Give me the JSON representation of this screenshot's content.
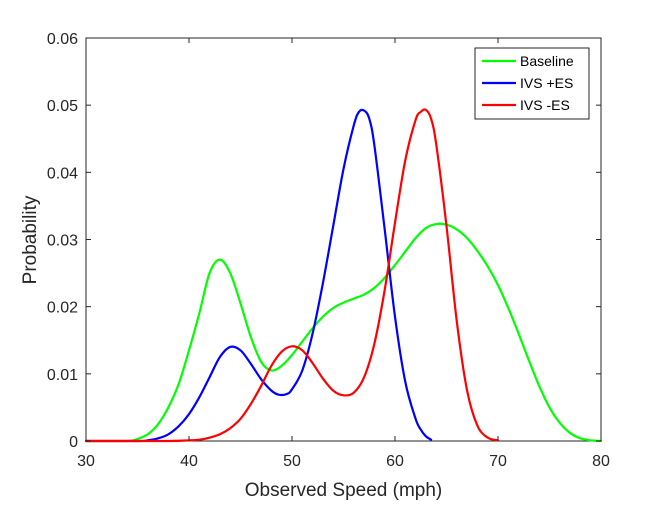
{
  "chart_data": {
    "type": "line",
    "title": "",
    "xlabel": "Observed Speed (mph)",
    "ylabel": "Probability",
    "xlim": [
      30,
      80
    ],
    "ylim": [
      0,
      0.06
    ],
    "xticks": [
      30,
      40,
      50,
      60,
      70,
      80
    ],
    "yticks": [
      0,
      0.01,
      0.02,
      0.03,
      0.04,
      0.05,
      0.06
    ],
    "xtick_labels": [
      "30",
      "40",
      "50",
      "60",
      "70",
      "80"
    ],
    "ytick_labels": [
      "0",
      "0.01",
      "0.02",
      "0.03",
      "0.04",
      "0.05",
      "0.06"
    ],
    "legend_position": "top-right",
    "grid": false,
    "series": [
      {
        "name": "Baseline",
        "color": "#00ff00",
        "x": [
          30,
          34,
          35,
          36,
          37,
          38,
          39,
          40,
          41,
          42,
          43,
          44,
          45,
          46,
          47,
          48,
          49,
          50,
          51,
          52,
          53,
          54,
          55,
          56,
          57,
          58,
          59,
          60,
          61,
          62,
          63,
          64,
          65,
          66,
          67,
          68,
          69,
          70,
          71,
          72,
          73,
          74,
          75,
          76,
          77,
          78,
          79,
          80
        ],
        "y": [
          0,
          0,
          0.0003,
          0.001,
          0.0025,
          0.005,
          0.0085,
          0.0135,
          0.019,
          0.025,
          0.027,
          0.025,
          0.0205,
          0.0155,
          0.0118,
          0.0105,
          0.0112,
          0.0128,
          0.0148,
          0.0168,
          0.0185,
          0.0198,
          0.0206,
          0.0212,
          0.0218,
          0.0228,
          0.0243,
          0.0262,
          0.0282,
          0.0302,
          0.0317,
          0.0323,
          0.0322,
          0.0315,
          0.0302,
          0.0283,
          0.026,
          0.0232,
          0.0198,
          0.016,
          0.012,
          0.0082,
          0.005,
          0.0027,
          0.0012,
          0.0004,
          0.0001,
          0
        ]
      },
      {
        "name": "IVS +ES",
        "color": "#0000ff",
        "x": [
          30,
          35,
          36,
          37,
          38,
          39,
          40,
          41,
          42,
          43,
          44,
          45,
          46,
          47,
          48,
          48.7,
          49.5,
          50,
          51,
          52,
          53,
          54,
          55,
          56,
          56.5,
          57,
          57.5,
          58,
          59,
          60,
          61,
          62,
          62.5,
          63,
          63.5
        ],
        "y": [
          0,
          0,
          0.0001,
          0.0004,
          0.001,
          0.0022,
          0.004,
          0.0065,
          0.0095,
          0.0125,
          0.014,
          0.0135,
          0.0115,
          0.0092,
          0.0075,
          0.0069,
          0.007,
          0.0077,
          0.0105,
          0.016,
          0.0235,
          0.032,
          0.0405,
          0.047,
          0.049,
          0.0492,
          0.048,
          0.044,
          0.0315,
          0.0185,
          0.0088,
          0.0033,
          0.0017,
          0.0007,
          0.0002
        ]
      },
      {
        "name": "IVS -ES",
        "color": "#ff0000",
        "x": [
          30,
          38,
          40,
          41,
          42,
          43,
          44,
          45,
          46,
          47,
          48,
          49,
          50,
          51,
          52,
          53,
          54,
          55,
          56,
          57,
          58,
          59,
          60,
          61,
          62,
          62.5,
          63,
          63.5,
          64,
          65,
          66,
          67,
          68,
          69,
          70
        ],
        "y": [
          0,
          0,
          0.0001,
          0.0002,
          0.0005,
          0.001,
          0.0019,
          0.0033,
          0.0055,
          0.0082,
          0.0112,
          0.0133,
          0.0141,
          0.0135,
          0.0116,
          0.0093,
          0.0075,
          0.0068,
          0.0072,
          0.0095,
          0.0145,
          0.0225,
          0.0325,
          0.0418,
          0.0478,
          0.049,
          0.0493,
          0.048,
          0.0442,
          0.032,
          0.0178,
          0.0075,
          0.0023,
          0.0005,
          0.0001
        ]
      }
    ]
  }
}
